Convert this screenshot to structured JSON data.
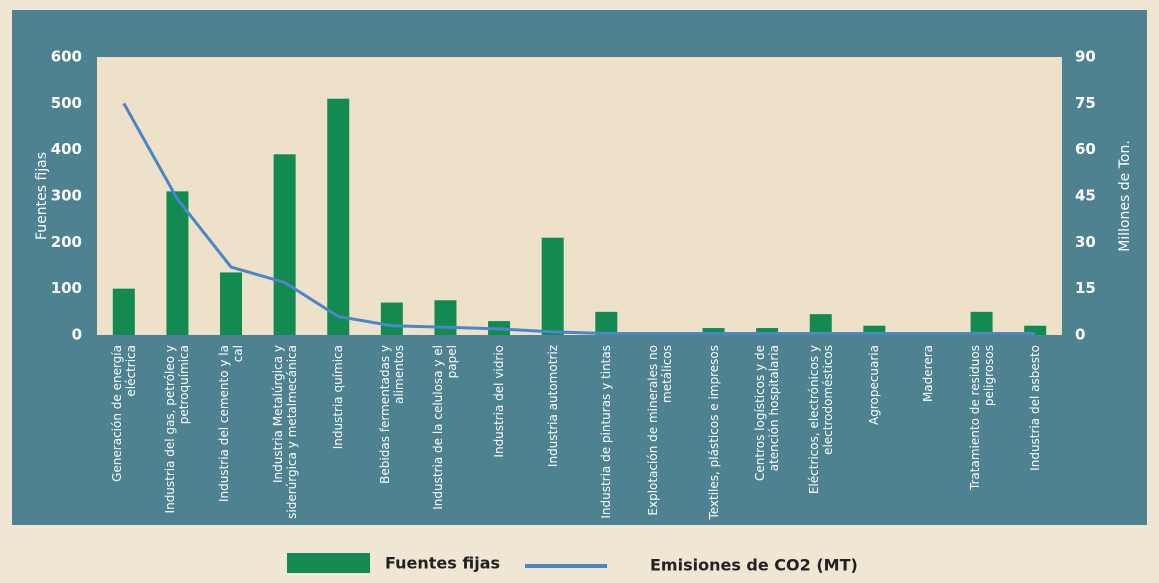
{
  "chart_data": {
    "type": "combo",
    "categories": [
      "Generación de energía eléctrica",
      "Industria del gas, petróleo y petroquímica",
      "Industria del cemento y la cal",
      "Industria Metalúrgica y siderúrgica y metalmecánica",
      "Industria química",
      "Bebidas fermentadas y alimentos",
      "Industria de la celulosa y el papel",
      "Industria del vidrio",
      "Industria automotriz",
      "Industria de pinturas y tintas",
      "Explotación de minerales no metálicos",
      "Textiles, plásticos e impresos",
      "Centros logísticos y de atención hospitalaria",
      "Eléctricos, electrónicos y electrodomésticos",
      "Agropecuaria",
      "Maderera",
      "Tratamiento de residuos peligrosos",
      "Industria del asbesto"
    ],
    "series": [
      {
        "name": "Fuentes fijas",
        "type": "bar",
        "axis": "y",
        "color": "#138a52",
        "values": [
          100,
          310,
          135,
          390,
          510,
          70,
          75,
          30,
          210,
          50,
          0,
          15,
          15,
          45,
          20,
          0,
          50,
          20
        ]
      },
      {
        "name": "Emisiones de CO2 (MT)",
        "type": "line",
        "axis": "y2",
        "color": "#4a86c8",
        "values": [
          75,
          44,
          22,
          17,
          6,
          3,
          2.5,
          2,
          1,
          0.5,
          0.5,
          0.5,
          0.5,
          0.5,
          0.5,
          0.5,
          0.5,
          0.5
        ]
      }
    ],
    "ylabel": "Fuentes fijas",
    "y2label": "Millones de Ton.",
    "ylim": [
      0,
      600
    ],
    "yticks": [
      0,
      100,
      200,
      300,
      400,
      500,
      600
    ],
    "y2lim": [
      0,
      90
    ],
    "y2ticks": [
      0,
      15,
      30,
      45,
      60,
      75,
      90
    ]
  }
}
